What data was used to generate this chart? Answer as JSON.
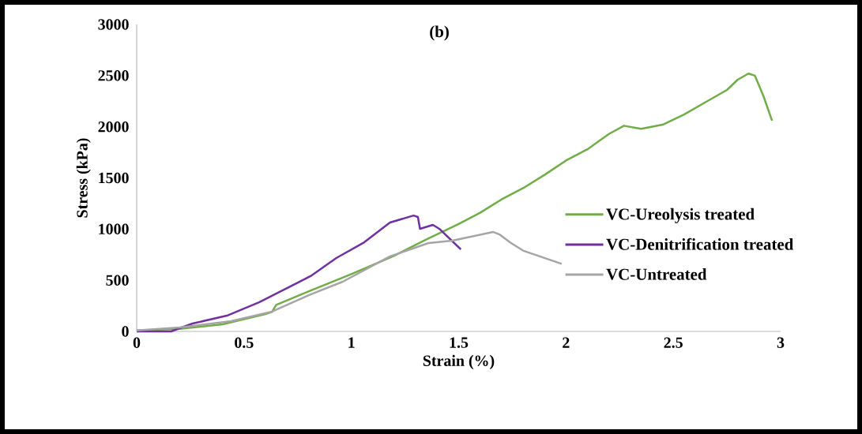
{
  "chart_data": {
    "type": "line",
    "title": "(b)",
    "xlabel": "Strain (%)",
    "ylabel": "Stress (kPa)",
    "xlim": [
      0,
      3
    ],
    "ylim": [
      0,
      3000
    ],
    "xticks": [
      0,
      0.5,
      1,
      1.5,
      2,
      2.5,
      3
    ],
    "yticks": [
      0,
      500,
      1000,
      1500,
      2000,
      2500,
      3000
    ],
    "grid": false,
    "legend": "right",
    "marker": "none",
    "line_style": "solid",
    "series": [
      {
        "name": "VC-Ureolysis treated",
        "color": "#70ad47",
        "x": [
          0,
          0.2,
          0.4,
          0.6,
          0.63,
          0.65,
          0.8,
          1.0,
          1.2,
          1.35,
          1.5,
          1.6,
          1.7,
          1.8,
          1.9,
          2.0,
          2.1,
          2.2,
          2.27,
          2.35,
          2.45,
          2.55,
          2.65,
          2.75,
          2.8,
          2.85,
          2.88,
          2.92,
          2.96
        ],
        "values": [
          10,
          25,
          70,
          170,
          190,
          260,
          390,
          560,
          740,
          900,
          1050,
          1160,
          1290,
          1400,
          1530,
          1670,
          1780,
          1930,
          2010,
          1980,
          2020,
          2120,
          2240,
          2360,
          2460,
          2520,
          2500,
          2300,
          2060
        ]
      },
      {
        "name": "VC-Denitrification treated",
        "color": "#7030a0",
        "x": [
          0,
          0.16,
          0.26,
          0.42,
          0.57,
          0.76,
          0.81,
          0.93,
          1.06,
          1.18,
          1.29,
          1.31,
          1.32,
          1.38,
          1.41,
          1.51
        ],
        "values": [
          0,
          0,
          77,
          154,
          285,
          486,
          540,
          717,
          871,
          1064,
          1133,
          1118,
          1003,
          1041,
          1003,
          802
        ]
      },
      {
        "name": "VC-Untreated",
        "color": "#a5a5a5",
        "x": [
          0,
          0.2,
          0.44,
          0.63,
          0.81,
          0.96,
          1.18,
          1.36,
          1.47,
          1.66,
          1.69,
          1.74,
          1.8,
          1.98
        ],
        "values": [
          10,
          39,
          100,
          193,
          362,
          486,
          733,
          864,
          887,
          972,
          948,
          870,
          790,
          660
        ]
      }
    ]
  }
}
